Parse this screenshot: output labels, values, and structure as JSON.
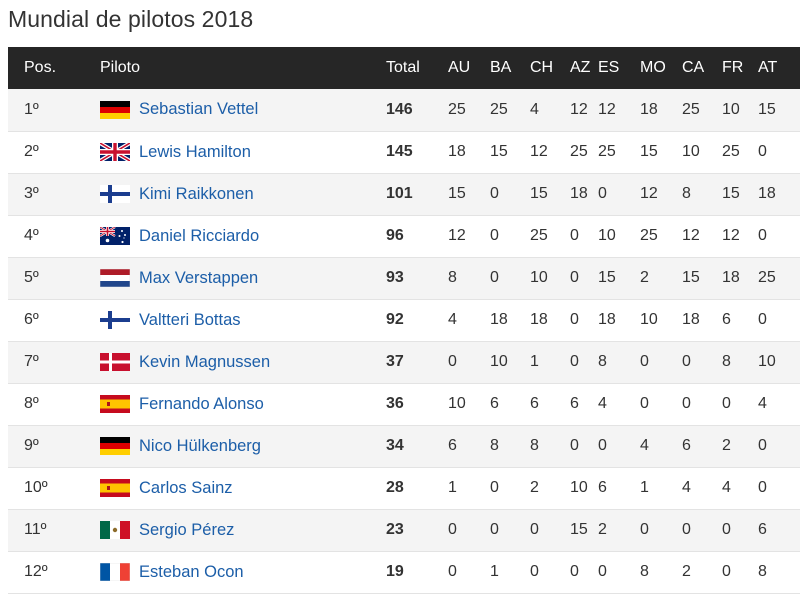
{
  "title": "Mundial de pilotos 2018",
  "columns": {
    "pos": "Pos.",
    "driver": "Piloto",
    "total": "Total",
    "races": [
      "AU",
      "BA",
      "CH",
      "AZ",
      "ES",
      "MO",
      "CA",
      "FR",
      "AT"
    ]
  },
  "rows": [
    {
      "pos": "1º",
      "flag": "germany-flag",
      "driver": "Sebastian Vettel",
      "total": "146",
      "scores": [
        "25",
        "25",
        "4",
        "12",
        "12",
        "18",
        "25",
        "10",
        "15"
      ]
    },
    {
      "pos": "2º",
      "flag": "united-kingdom-flag",
      "driver": "Lewis Hamilton",
      "total": "145",
      "scores": [
        "18",
        "15",
        "12",
        "25",
        "25",
        "15",
        "10",
        "25",
        "0"
      ]
    },
    {
      "pos": "3º",
      "flag": "finland-flag",
      "driver": "Kimi Raikkonen",
      "total": "101",
      "scores": [
        "15",
        "0",
        "15",
        "18",
        "0",
        "12",
        "8",
        "15",
        "18"
      ]
    },
    {
      "pos": "4º",
      "flag": "australia-flag",
      "driver": "Daniel Ricciardo",
      "total": "96",
      "scores": [
        "12",
        "0",
        "25",
        "0",
        "10",
        "25",
        "12",
        "12",
        "0"
      ]
    },
    {
      "pos": "5º",
      "flag": "netherlands-flag",
      "driver": "Max Verstappen",
      "total": "93",
      "scores": [
        "8",
        "0",
        "10",
        "0",
        "15",
        "2",
        "15",
        "18",
        "25"
      ]
    },
    {
      "pos": "6º",
      "flag": "finland-flag",
      "driver": "Valtteri Bottas",
      "total": "92",
      "scores": [
        "4",
        "18",
        "18",
        "0",
        "18",
        "10",
        "18",
        "6",
        "0"
      ]
    },
    {
      "pos": "7º",
      "flag": "denmark-flag",
      "driver": "Kevin Magnussen",
      "total": "37",
      "scores": [
        "0",
        "10",
        "1",
        "0",
        "8",
        "0",
        "0",
        "8",
        "10"
      ]
    },
    {
      "pos": "8º",
      "flag": "spain-flag",
      "driver": "Fernando Alonso",
      "total": "36",
      "scores": [
        "10",
        "6",
        "6",
        "6",
        "4",
        "0",
        "0",
        "0",
        "4"
      ]
    },
    {
      "pos": "9º",
      "flag": "germany-flag",
      "driver": "Nico Hülkenberg",
      "total": "34",
      "scores": [
        "6",
        "8",
        "8",
        "0",
        "0",
        "4",
        "6",
        "2",
        "0"
      ]
    },
    {
      "pos": "10º",
      "flag": "spain-flag",
      "driver": "Carlos Sainz",
      "total": "28",
      "scores": [
        "1",
        "0",
        "2",
        "10",
        "6",
        "1",
        "4",
        "4",
        "0"
      ]
    },
    {
      "pos": "11º",
      "flag": "mexico-flag",
      "driver": "Sergio Pérez",
      "total": "23",
      "scores": [
        "0",
        "0",
        "0",
        "15",
        "2",
        "0",
        "0",
        "0",
        "6"
      ]
    },
    {
      "pos": "12º",
      "flag": "france-flag",
      "driver": "Esteban Ocon",
      "total": "19",
      "scores": [
        "0",
        "1",
        "0",
        "0",
        "0",
        "8",
        "2",
        "0",
        "8"
      ]
    }
  ],
  "colors": {
    "header_bg": "#262626",
    "header_text": "#ffffff",
    "link": "#1c5ea8",
    "row_alt": "#f4f4f4"
  }
}
